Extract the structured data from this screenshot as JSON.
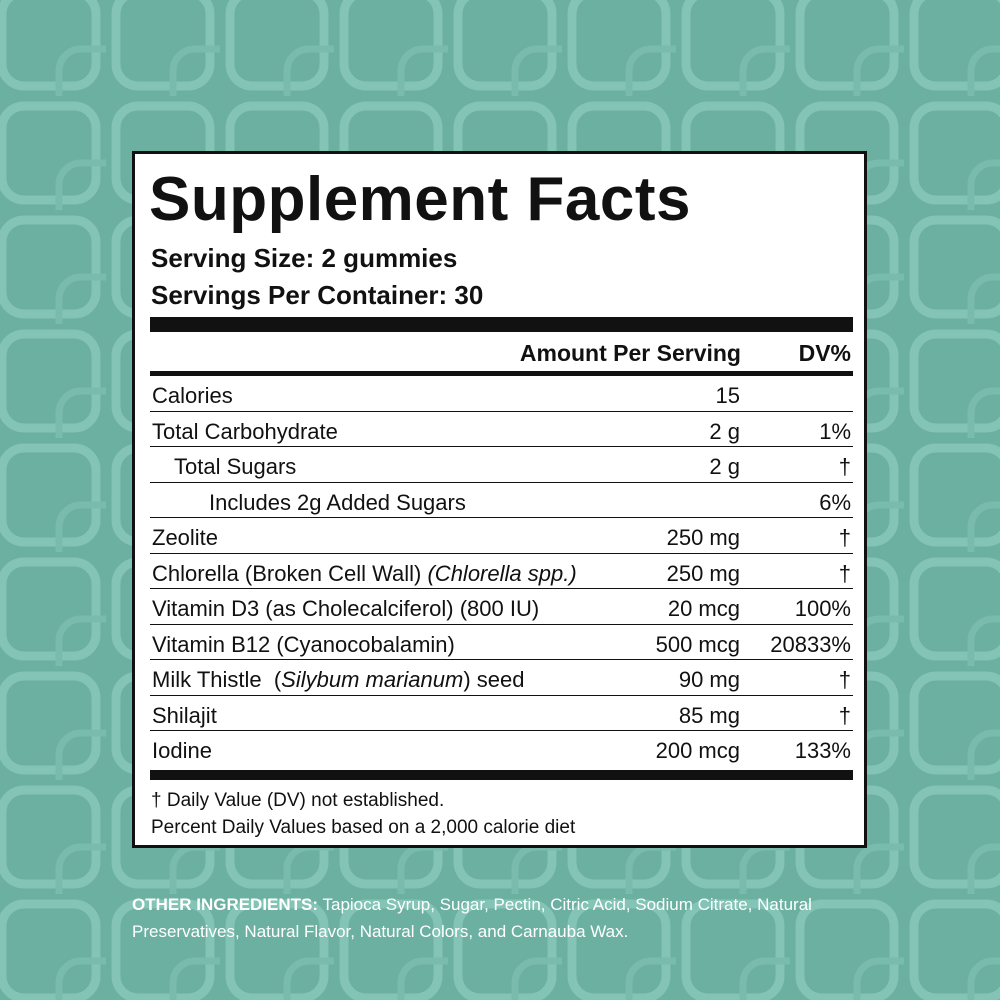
{
  "label": {
    "title": "Supplement Facts",
    "serving_size": "Serving Size: 2 gummies",
    "servings_per_container": "Servings Per Container: 30",
    "header": {
      "amount": "Amount Per Serving",
      "dv": "DV%"
    },
    "rows": [
      {
        "name": "Calories",
        "amount": "15"
      },
      {
        "name": "Total Carbohydrate",
        "amount": "2 g",
        "dv": "1%",
        "sub_rows": [
          {
            "name": "Total Sugars",
            "amount": "2 g",
            "dv": "†",
            "sub_rows": [
              {
                "name": "Includes 2g Added Sugars",
                "dv": "6%"
              }
            ]
          }
        ]
      },
      {
        "name": "Zeolite",
        "amount": "250 mg",
        "dv": "†"
      },
      {
        "name_parts": [
          {
            "text": "Chlorella (Broken Cell Wall) "
          },
          {
            "text": "(Chlorella spp.)",
            "italic": true
          }
        ],
        "amount": "250 mg",
        "dv": "†"
      },
      {
        "name": "Vitamin D3 (as Cholecalciferol) (800 IU)",
        "amount": "20 mcg",
        "dv": "100%"
      },
      {
        "name": "Vitamin B12 (Cyanocobalamin)",
        "amount": "500 mcg",
        "dv": "20833%"
      },
      {
        "name_parts": [
          {
            "text": "Milk Thistle  ("
          },
          {
            "text": "Silybum marianum",
            "italic": true
          },
          {
            "text": ") seed"
          }
        ],
        "amount": "90 mg",
        "dv": "†"
      },
      {
        "name": "Shilajit",
        "amount": "85 mg",
        "dv": "†"
      },
      {
        "name": "Iodine",
        "amount": "200 mcg",
        "dv": "133%"
      }
    ],
    "footnotes": [
      "† Daily Value (DV) not established.",
      "Percent Daily Values based on a 2,000 calorie diet"
    ]
  },
  "other_ingredients": {
    "heading": "OTHER INGREDIENTS:",
    "text": "Tapioca Syrup, Sugar, Pectin, Citric Acid, Sodium Citrate, Natural Preservatives, Natural Flavor, Natural Colors, and Carnauba Wax."
  }
}
